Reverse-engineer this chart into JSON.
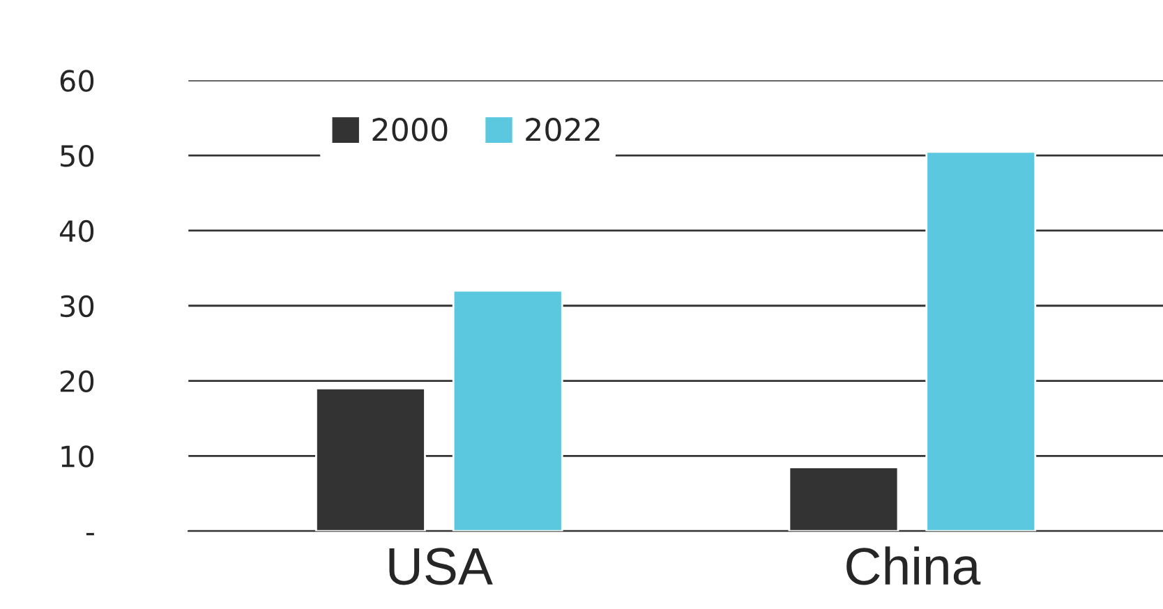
{
  "chart_data": {
    "type": "bar",
    "categories": [
      "USA",
      "China"
    ],
    "series": [
      {
        "name": "2000",
        "color": "#333333",
        "values": [
          19,
          8.5
        ]
      },
      {
        "name": "2022",
        "color": "#5bc8e0",
        "values": [
          32,
          50.5
        ]
      }
    ],
    "ylim": [
      0,
      60
    ],
    "yticks": [
      {
        "value": 0,
        "label": "-"
      },
      10,
      20,
      30,
      40,
      50,
      60
    ],
    "grid": "y",
    "legend": "top left"
  }
}
